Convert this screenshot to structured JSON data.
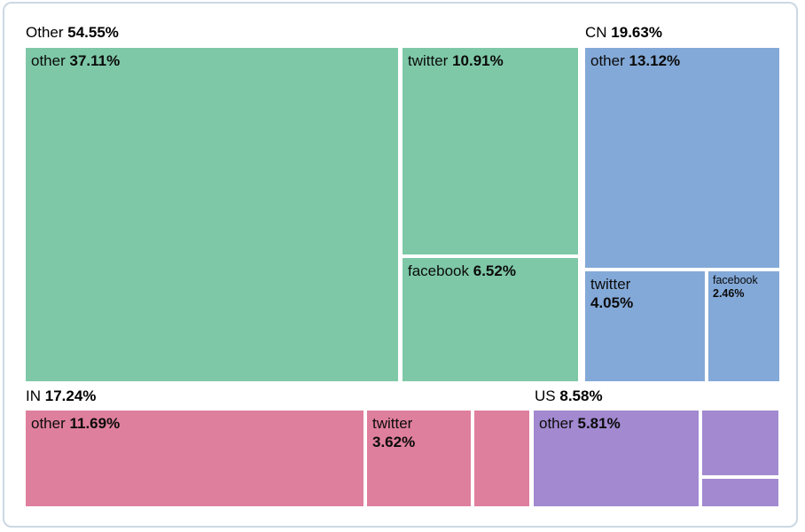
{
  "chart_data": {
    "type": "treemap",
    "title": "",
    "legend": "none",
    "total_pct": 100.0,
    "groups": [
      {
        "label": "Other",
        "pct_label": "54.55%",
        "value": 54.55,
        "color": "#7ec8a7",
        "children": [
          {
            "label": "other",
            "pct_label": "37.11%",
            "value": 37.11
          },
          {
            "label": "twitter",
            "pct_label": "10.91%",
            "value": 10.91
          },
          {
            "label": "facebook",
            "pct_label": "6.52%",
            "value": 6.52
          }
        ]
      },
      {
        "label": "CN",
        "pct_label": "19.63%",
        "value": 19.63,
        "color": "#83a9d8",
        "children": [
          {
            "label": "other",
            "pct_label": "13.12%",
            "value": 13.12
          },
          {
            "label": "twitter",
            "pct_label": "4.05%",
            "value": 4.05
          },
          {
            "label": "facebook",
            "pct_label": "2.46%",
            "value": 2.46
          }
        ]
      },
      {
        "label": "IN",
        "pct_label": "17.24%",
        "value": 17.24,
        "color": "#df7f9e",
        "children": [
          {
            "label": "other",
            "pct_label": "11.69%",
            "value": 11.69
          },
          {
            "label": "twitter",
            "pct_label": "3.62%",
            "value": 3.62
          },
          {
            "label": "",
            "pct_label": "",
            "value_estimated": 1.93
          }
        ]
      },
      {
        "label": "US",
        "pct_label": "8.58%",
        "value": 8.58,
        "color": "#a289d0",
        "children": [
          {
            "label": "other",
            "pct_label": "5.81%",
            "value": 5.81
          },
          {
            "label": "",
            "pct_label": "",
            "value_estimated": 1.93
          },
          {
            "label": "",
            "pct_label": "",
            "value_estimated": 0.84
          }
        ]
      }
    ]
  }
}
